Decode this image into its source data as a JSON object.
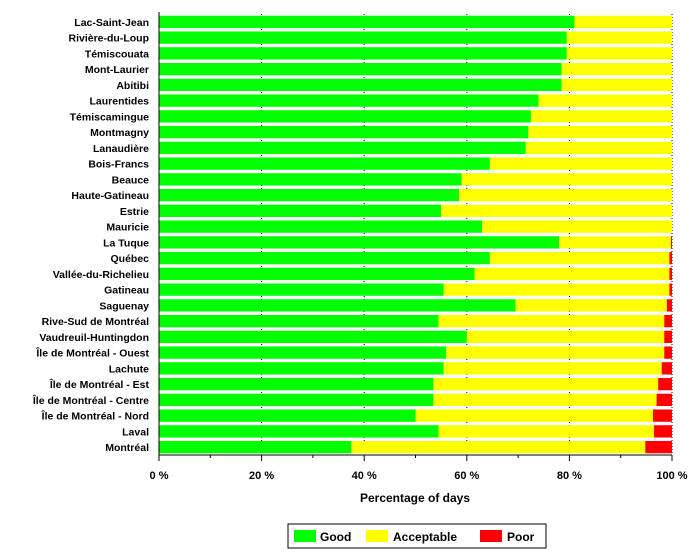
{
  "chart_data": {
    "type": "bar",
    "orientation": "horizontal",
    "stacked": true,
    "categories": [
      "Lac-Saint-Jean",
      "Rivière-du-Loup",
      "Témiscouata",
      "Mont-Laurier",
      "Abitibi",
      "Laurentides",
      "Témiscamingue",
      "Montmagny",
      "Lanaudière",
      "Bois-Francs",
      "Beauce",
      "Haute-Gatineau",
      "Estrie",
      "Mauricie",
      "La Tuque",
      "Québec",
      "Vallée-du-Richelieu",
      "Gatineau",
      "Saguenay",
      "Rive-Sud de Montréal",
      "Vaudreuil-Huntingdon",
      "Île de Montréal - Ouest",
      "Lachute",
      "Île de Montréal - Est",
      "Île de Montréal - Centre",
      "Île de Montréal - Nord",
      "Laval",
      "Montréal"
    ],
    "series": [
      {
        "name": "Good",
        "color": "#00ff00",
        "values": [
          81,
          79.5,
          79.5,
          78.5,
          78.5,
          74,
          72.5,
          72,
          71.5,
          64.5,
          59,
          58.5,
          55,
          63,
          78,
          64.5,
          61.5,
          55.5,
          69.5,
          54.5,
          60,
          56,
          55.5,
          53.5,
          53.5,
          50,
          54.5,
          37.5
        ]
      },
      {
        "name": "Acceptable",
        "color": "#ffff00",
        "values": [
          19,
          20.5,
          20.5,
          21.5,
          21.5,
          26,
          27.5,
          28,
          28.5,
          35.5,
          41,
          41.5,
          45,
          37,
          21.8,
          35,
          38,
          44,
          29.5,
          44,
          38.5,
          42.5,
          42.5,
          43.8,
          43.5,
          46.3,
          42,
          57.3
        ]
      },
      {
        "name": "Poor",
        "color": "#ff0000",
        "values": [
          0,
          0,
          0,
          0,
          0,
          0,
          0,
          0,
          0,
          0,
          0,
          0,
          0,
          0,
          0.2,
          0.5,
          0.5,
          0.5,
          1,
          1.5,
          1.5,
          1.5,
          2,
          2.7,
          3,
          3.7,
          3.5,
          5.2
        ]
      }
    ],
    "xlabel": "Percentage of days",
    "xlim": [
      0,
      100
    ],
    "xticks": [
      "0 %",
      "20 %",
      "40 %",
      "60 %",
      "80 %",
      "100 %"
    ],
    "xtick_values": [
      0,
      20,
      40,
      60,
      80,
      100
    ],
    "grid": true,
    "legend_position": "bottom"
  }
}
